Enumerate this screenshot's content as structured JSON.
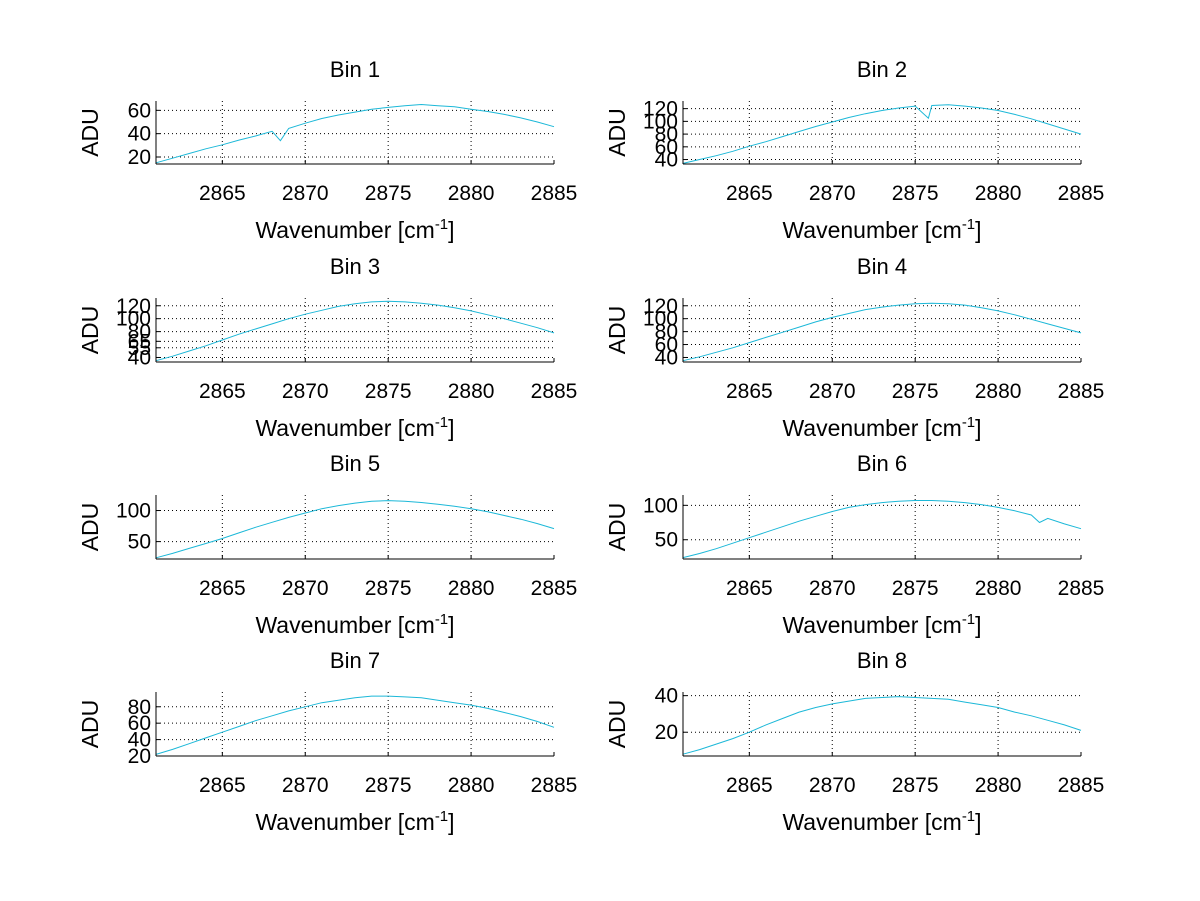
{
  "chart_data": [
    {
      "type": "line",
      "title": "Bin 1",
      "xlabel": "Wavenumber [cm",
      "xlabel_sup": "-1",
      "xlabel_end": "]",
      "ylabel": "ADU",
      "xlim": [
        2861,
        2885
      ],
      "ylim": [
        14,
        68
      ],
      "grid": true,
      "xticks": [
        2865,
        2870,
        2875,
        2880,
        2885
      ],
      "yticks": [
        20,
        40,
        60
      ],
      "series": [
        {
          "name": "Bin 1",
          "color": "#1cb8d8",
          "x": [
            2861,
            2862,
            2863,
            2864,
            2865,
            2866,
            2867,
            2868,
            2868.5,
            2869,
            2870,
            2871,
            2872,
            2873,
            2874,
            2875,
            2876,
            2877,
            2878,
            2879,
            2880,
            2881,
            2882,
            2883,
            2884,
            2885
          ],
          "y": [
            15,
            19,
            23,
            27,
            30.5,
            34.5,
            38,
            42,
            34,
            44.5,
            49,
            53,
            56,
            58.5,
            61,
            62.5,
            64,
            65,
            64,
            63,
            61,
            59,
            56.5,
            53.5,
            50,
            46
          ]
        }
      ]
    },
    {
      "type": "line",
      "title": "Bin 2",
      "xlabel": "Wavenumber [cm",
      "xlabel_sup": "-1",
      "xlabel_end": "]",
      "ylabel": "ADU",
      "xlim": [
        2861,
        2885
      ],
      "ylim": [
        33,
        132
      ],
      "grid": true,
      "xticks": [
        2865,
        2870,
        2875,
        2880,
        2885
      ],
      "yticks": [
        40,
        60,
        80,
        100,
        120
      ],
      "series": [
        {
          "name": "Bin 2",
          "color": "#1cb8d8",
          "x": [
            2861,
            2862,
            2863,
            2864,
            2865,
            2866,
            2867,
            2868,
            2869,
            2870,
            2871,
            2872,
            2873,
            2874,
            2875,
            2875.8,
            2876,
            2877,
            2878,
            2879,
            2880,
            2881,
            2882,
            2883,
            2884,
            2885
          ],
          "y": [
            34,
            40,
            46,
            53,
            61,
            68,
            76,
            84,
            92,
            99,
            106,
            112,
            117,
            121,
            124,
            105,
            125,
            126,
            124,
            121,
            117,
            111,
            104,
            96,
            88,
            80
          ]
        }
      ]
    },
    {
      "type": "line",
      "title": "Bin 3",
      "xlabel": "Wavenumber [cm",
      "xlabel_sup": "-1",
      "xlabel_end": "]",
      "ylabel": "ADU",
      "xlim": [
        2861,
        2885
      ],
      "ylim": [
        33,
        132
      ],
      "grid": true,
      "xticks": [
        2865,
        2870,
        2875,
        2880,
        2885
      ],
      "yticks": [
        40,
        55,
        65,
        80,
        100,
        120
      ],
      "series": [
        {
          "name": "Bin 3",
          "color": "#1cb8d8",
          "x": [
            2861,
            2862,
            2863,
            2864,
            2865,
            2866,
            2867,
            2868,
            2869,
            2870,
            2871,
            2872,
            2873,
            2874,
            2875,
            2876,
            2877,
            2878,
            2879,
            2880,
            2881,
            2882,
            2883,
            2884,
            2885
          ],
          "y": [
            35,
            42,
            50,
            58,
            67,
            76,
            84,
            92,
            100,
            107,
            113,
            119,
            123,
            126,
            127,
            126,
            124,
            121,
            117,
            112,
            106,
            100,
            93,
            86,
            78
          ]
        }
      ]
    },
    {
      "type": "line",
      "title": "Bin 4",
      "xlabel": "Wavenumber [cm",
      "xlabel_sup": "-1",
      "xlabel_end": "]",
      "ylabel": "ADU",
      "xlim": [
        2861,
        2885
      ],
      "ylim": [
        33,
        132
      ],
      "grid": true,
      "xticks": [
        2865,
        2870,
        2875,
        2880,
        2885
      ],
      "yticks": [
        40,
        60,
        80,
        100,
        120
      ],
      "series": [
        {
          "name": "Bin 4",
          "color": "#1cb8d8",
          "x": [
            2861,
            2862,
            2863,
            2864,
            2865,
            2866,
            2867,
            2868,
            2869,
            2870,
            2871,
            2872,
            2873,
            2874,
            2875,
            2876,
            2877,
            2878,
            2879,
            2880,
            2881,
            2882,
            2883,
            2884,
            2885
          ],
          "y": [
            35,
            41,
            48,
            55,
            63,
            71,
            79,
            87,
            95,
            102,
            108,
            114,
            118,
            121,
            123,
            124,
            123,
            121,
            117,
            112,
            106,
            99,
            92,
            85,
            78
          ]
        }
      ]
    },
    {
      "type": "line",
      "title": "Bin 5",
      "xlabel": "Wavenumber [cm",
      "xlabel_sup": "-1",
      "xlabel_end": "]",
      "ylabel": "ADU",
      "xlim": [
        2861,
        2885
      ],
      "ylim": [
        22,
        125
      ],
      "grid": true,
      "xticks": [
        2865,
        2870,
        2875,
        2880,
        2885
      ],
      "yticks": [
        50,
        100
      ],
      "series": [
        {
          "name": "Bin 5",
          "color": "#1cb8d8",
          "x": [
            2861,
            2862,
            2863,
            2864,
            2865,
            2866,
            2867,
            2868,
            2869,
            2870,
            2871,
            2872,
            2873,
            2874,
            2875,
            2876,
            2877,
            2878,
            2879,
            2880,
            2881,
            2882,
            2883,
            2884,
            2885
          ],
          "y": [
            24,
            31,
            39,
            47,
            55,
            64,
            73,
            81,
            89,
            96,
            103,
            108,
            112,
            115,
            116,
            115,
            113,
            110,
            107,
            103,
            98,
            92,
            86,
            79,
            71
          ]
        }
      ]
    },
    {
      "type": "line",
      "title": "Bin 6",
      "xlabel": "Wavenumber [cm",
      "xlabel_sup": "-1",
      "xlabel_end": "]",
      "ylabel": "ADU",
      "xlim": [
        2861,
        2885
      ],
      "ylim": [
        22,
        115
      ],
      "grid": true,
      "xticks": [
        2865,
        2870,
        2875,
        2880,
        2885
      ],
      "yticks": [
        50,
        100
      ],
      "series": [
        {
          "name": "Bin 6",
          "color": "#1cb8d8",
          "x": [
            2861,
            2862,
            2863,
            2864,
            2865,
            2866,
            2867,
            2868,
            2869,
            2870,
            2871,
            2872,
            2873,
            2874,
            2875,
            2876,
            2877,
            2878,
            2879,
            2880,
            2881,
            2882,
            2882.5,
            2883,
            2884,
            2885
          ],
          "y": [
            24,
            30,
            37,
            45,
            53,
            61,
            69,
            77,
            84,
            91,
            97,
            101,
            104,
            106,
            107,
            107,
            106,
            104,
            101,
            97,
            92,
            86,
            75,
            81,
            73,
            66
          ]
        }
      ]
    },
    {
      "type": "line",
      "title": "Bin 7",
      "xlabel": "Wavenumber [cm",
      "xlabel_sup": "-1",
      "xlabel_end": "]",
      "ylabel": "ADU",
      "xlim": [
        2861,
        2885
      ],
      "ylim": [
        20,
        98
      ],
      "grid": true,
      "xticks": [
        2865,
        2870,
        2875,
        2880,
        2885
      ],
      "yticks": [
        20,
        40,
        60,
        80
      ],
      "series": [
        {
          "name": "Bin 7",
          "color": "#1cb8d8",
          "x": [
            2861,
            2862,
            2863,
            2864,
            2865,
            2866,
            2867,
            2868,
            2869,
            2870,
            2871,
            2872,
            2873,
            2874,
            2875,
            2876,
            2877,
            2878,
            2879,
            2880,
            2881,
            2882,
            2883,
            2884,
            2885
          ],
          "y": [
            22,
            28,
            35,
            42,
            49,
            56,
            63,
            69,
            75,
            80,
            85,
            88,
            91,
            93,
            93,
            92,
            91,
            88,
            85,
            82,
            78,
            73,
            68,
            62,
            55
          ]
        }
      ]
    },
    {
      "type": "line",
      "title": "Bin 8",
      "xlabel": "Wavenumber [cm",
      "xlabel_sup": "-1",
      "xlabel_end": "]",
      "ylabel": "ADU",
      "xlim": [
        2861,
        2885
      ],
      "ylim": [
        7,
        42
      ],
      "grid": true,
      "xticks": [
        2865,
        2870,
        2875,
        2880,
        2885
      ],
      "yticks": [
        20,
        40
      ],
      "series": [
        {
          "name": "Bin 8",
          "color": "#1cb8d8",
          "x": [
            2861,
            2862,
            2863,
            2864,
            2865,
            2866,
            2867,
            2868,
            2869,
            2870,
            2871,
            2872,
            2873,
            2874,
            2875,
            2876,
            2877,
            2878,
            2879,
            2880,
            2881,
            2882,
            2883,
            2884,
            2885
          ],
          "y": [
            8,
            10.5,
            13.5,
            16.5,
            20,
            24,
            27.5,
            31,
            33.5,
            35.5,
            37,
            38.5,
            39,
            39.5,
            39,
            38.5,
            38,
            36.5,
            35,
            33.5,
            31,
            29,
            26.5,
            24,
            21
          ]
        }
      ]
    }
  ]
}
